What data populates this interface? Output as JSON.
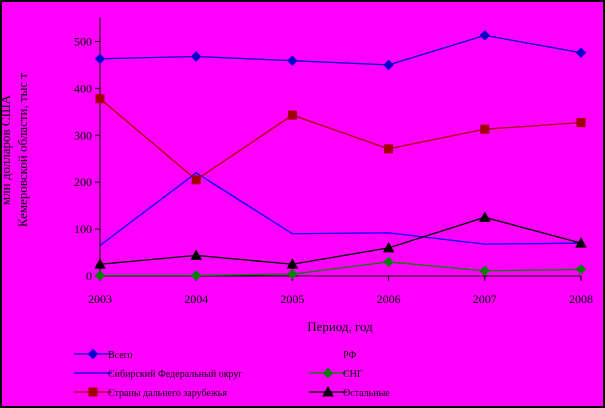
{
  "colors": {
    "background": "#FF00FF",
    "border": "#000000",
    "text": "#000000"
  },
  "chart_data": {
    "type": "line",
    "xlabel": "Период, год",
    "ylabel": [
      "млн долларов США",
      "Кемеровской области, тыс т"
    ],
    "x": [
      "2003",
      "2004",
      "2005",
      "2006",
      "2007",
      "2008"
    ],
    "yticks": [
      0,
      100,
      200,
      300,
      400,
      500
    ],
    "ylim": [
      0,
      550
    ],
    "grid": false,
    "legend_position": "bottom",
    "series": [
      {
        "name": "Всего",
        "color": "#0000CC",
        "marker": "diamond",
        "values": [
          463,
          468,
          459,
          450,
          513,
          476
        ]
      },
      {
        "name": "РФ",
        "color": "#808000",
        "marker": "none",
        "values": [
          null,
          null,
          null,
          null,
          null,
          null
        ]
      },
      {
        "name": "Сибирский Федеральный округ",
        "color": "#0000FF",
        "marker": "none",
        "values": [
          65,
          220,
          90,
          92,
          68,
          70
        ]
      },
      {
        "name": "СНГ",
        "color": "#008000",
        "marker": "diamond",
        "values": [
          1,
          1,
          4,
          30,
          11,
          14
        ]
      },
      {
        "name": "Страны дальнего зарубежья",
        "color": "#A00000",
        "marker": "square",
        "values": [
          378,
          205,
          343,
          271,
          313,
          327
        ]
      },
      {
        "name": "Остальные",
        "color": "#000000",
        "marker": "triangle",
        "values": [
          25,
          44,
          25,
          60,
          125,
          70
        ]
      }
    ]
  }
}
